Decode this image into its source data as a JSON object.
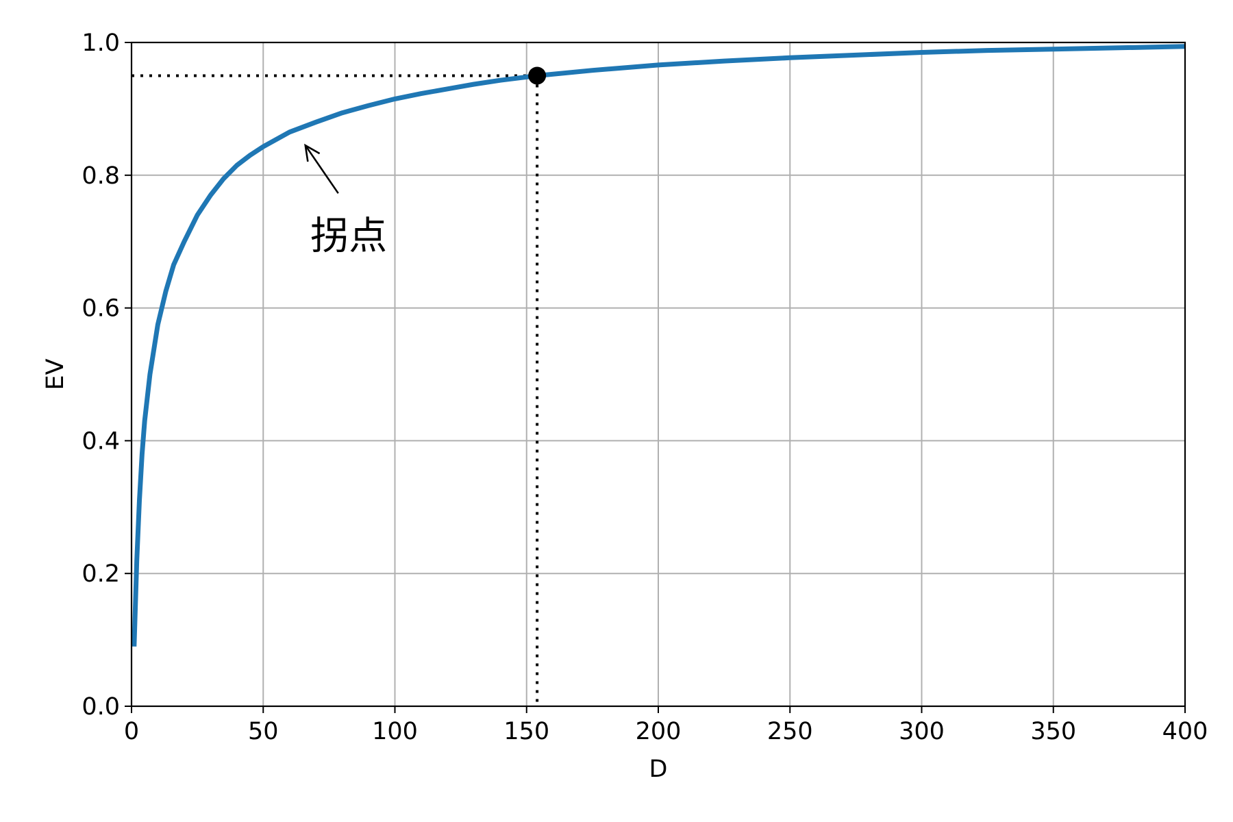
{
  "chart_data": {
    "type": "line",
    "title": "",
    "xlabel": "D",
    "ylabel": "EV",
    "xlim": [
      0,
      400
    ],
    "ylim": [
      0.0,
      1.0
    ],
    "xticks": [
      0,
      50,
      100,
      150,
      200,
      250,
      300,
      350,
      400
    ],
    "xtick_labels": [
      "0",
      "50",
      "100",
      "150",
      "200",
      "250",
      "300",
      "350",
      "400"
    ],
    "yticks": [
      0.0,
      0.2,
      0.4,
      0.6,
      0.8,
      1.0
    ],
    "ytick_labels": [
      "0.0",
      "0.2",
      "0.4",
      "0.6",
      "0.8",
      "1.0"
    ],
    "grid": true,
    "series": [
      {
        "color": "#1f77b4",
        "x": [
          1,
          2,
          3,
          4,
          5,
          7,
          10,
          13,
          16,
          20,
          25,
          30,
          35,
          40,
          45,
          50,
          60,
          70,
          80,
          90,
          100,
          110,
          120,
          130,
          140,
          154,
          175,
          200,
          225,
          250,
          275,
          300,
          325,
          350,
          375,
          400
        ],
        "y": [
          0.09,
          0.22,
          0.31,
          0.38,
          0.43,
          0.5,
          0.575,
          0.625,
          0.665,
          0.7,
          0.74,
          0.77,
          0.795,
          0.815,
          0.83,
          0.843,
          0.865,
          0.88,
          0.894,
          0.905,
          0.915,
          0.923,
          0.93,
          0.937,
          0.943,
          0.95,
          0.958,
          0.966,
          0.972,
          0.977,
          0.981,
          0.985,
          0.988,
          0.99,
          0.992,
          0.994
        ]
      }
    ],
    "highlight_point": {
      "x": 154,
      "y": 0.95,
      "color": "#000000"
    },
    "annotation": {
      "text": "拐点",
      "arrow_to": {
        "x": 66,
        "y": 0.845
      },
      "text_at": {
        "x": 70,
        "y": 0.72
      }
    }
  }
}
